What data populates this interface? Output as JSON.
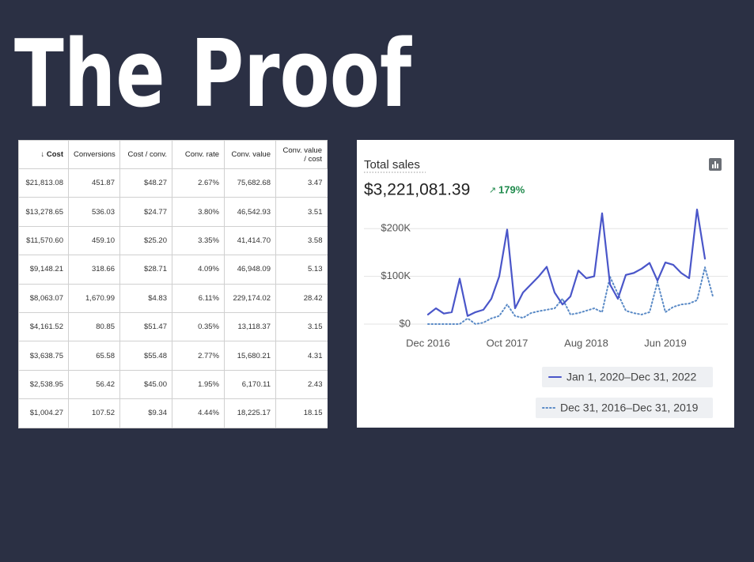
{
  "title": "The Proof",
  "table": {
    "headers": [
      "Cost",
      "Conversions",
      "Cost / conv.",
      "Conv. rate",
      "Conv. value",
      "Conv. value / cost"
    ],
    "rows": [
      [
        "$21,813.08",
        "451.87",
        "$48.27",
        "2.67%",
        "75,682.68",
        "3.47"
      ],
      [
        "$13,278.65",
        "536.03",
        "$24.77",
        "3.80%",
        "46,542.93",
        "3.51"
      ],
      [
        "$11,570.60",
        "459.10",
        "$25.20",
        "3.35%",
        "41,414.70",
        "3.58"
      ],
      [
        "$9,148.21",
        "318.66",
        "$28.71",
        "4.09%",
        "46,948.09",
        "5.13"
      ],
      [
        "$8,063.07",
        "1,670.99",
        "$4.83",
        "6.11%",
        "229,174.02",
        "28.42"
      ],
      [
        "$4,161.52",
        "80.85",
        "$51.47",
        "0.35%",
        "13,118.37",
        "3.15"
      ],
      [
        "$3,638.75",
        "65.58",
        "$55.48",
        "2.77%",
        "15,680.21",
        "4.31"
      ],
      [
        "$2,538.95",
        "56.42",
        "$45.00",
        "1.95%",
        "6,170.11",
        "2.43"
      ],
      [
        "$1,004.27",
        "107.52",
        "$9.34",
        "4.44%",
        "18,225.17",
        "18.15"
      ]
    ]
  },
  "chart_data": {
    "type": "line",
    "title": "Total sales",
    "total": "$3,221,081.39",
    "change": "179%",
    "categories": [
      "Dec 2016",
      null,
      null,
      null,
      null,
      null,
      null,
      null,
      null,
      null,
      "Oct 2017",
      null,
      null,
      null,
      null,
      null,
      null,
      null,
      null,
      null,
      "Aug 2018",
      null,
      null,
      null,
      null,
      null,
      null,
      null,
      null,
      null,
      "Jun 2019",
      null,
      null,
      null,
      null,
      null,
      null
    ],
    "ylim": [
      0,
      250000
    ],
    "yticks": [
      {
        "value": 0,
        "label": "$0"
      },
      {
        "value": 100000,
        "label": "$100K"
      },
      {
        "value": 200000,
        "label": "$200K"
      }
    ],
    "grid": true,
    "series": [
      {
        "name": "Jan 1, 2020–Dec 31, 2022",
        "color": "#4a56c9",
        "style": "solid",
        "values": [
          20000,
          33000,
          22000,
          25000,
          95000,
          17000,
          25000,
          30000,
          53000,
          100000,
          198000,
          33000,
          66000,
          83000,
          100000,
          120000,
          66000,
          41000,
          58000,
          112000,
          96000,
          100000,
          232000,
          83000,
          53000,
          103000,
          107000,
          116000,
          128000,
          91000,
          129000,
          124000,
          107000,
          96000,
          240000,
          137000,
          null
        ]
      },
      {
        "name": "Dec 31, 2016–Dec 31, 2019",
        "color": "#5a8ac6",
        "style": "dotted",
        "values": [
          0,
          0,
          0,
          0,
          0,
          12000,
          0,
          3000,
          12000,
          17000,
          41000,
          17000,
          13000,
          23000,
          27000,
          30000,
          33000,
          53000,
          20000,
          23000,
          28000,
          33000,
          25000,
          99000,
          63000,
          28000,
          23000,
          20000,
          25000,
          88000,
          25000,
          36000,
          41000,
          43000,
          50000,
          119000,
          58000
        ]
      }
    ]
  }
}
